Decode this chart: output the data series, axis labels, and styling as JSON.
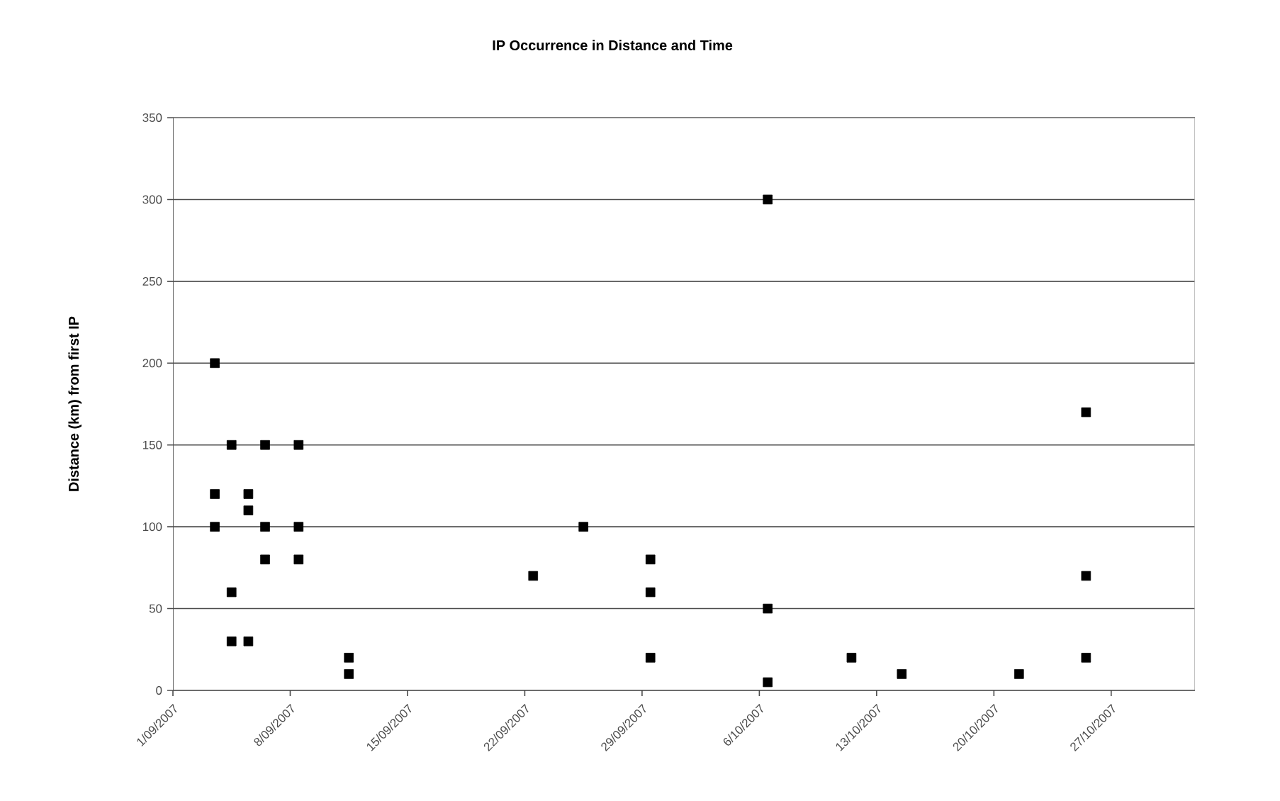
{
  "chart_data": {
    "type": "scatter",
    "title": "IP Occurrence in Distance and Time",
    "ylabel": "Distance (km) from first IP",
    "x": [
      "2007-09-03T12:00",
      "2007-09-03T12:00",
      "2007-09-03T12:00",
      "2007-09-04T12:00",
      "2007-09-04T12:00",
      "2007-09-04T12:00",
      "2007-09-05T12:00",
      "2007-09-05T12:00",
      "2007-09-05T12:00",
      "2007-09-06T12:00",
      "2007-09-06T12:00",
      "2007-09-06T12:00",
      "2007-09-08T12:00",
      "2007-09-08T12:00",
      "2007-09-08T12:00",
      "2007-09-11T12:00",
      "2007-09-11T12:00",
      "2007-09-22T12:00",
      "2007-09-25T12:00",
      "2007-09-29T12:00",
      "2007-09-29T12:00",
      "2007-09-29T12:00",
      "2007-10-06T12:00",
      "2007-10-06T12:00",
      "2007-10-06T12:00",
      "2007-10-11T12:00",
      "2007-10-14T12:00",
      "2007-10-21T12:00",
      "2007-10-25T12:00",
      "2007-10-25T12:00",
      "2007-10-25T12:00"
    ],
    "values": [
      200,
      120,
      100,
      150,
      60,
      30,
      120,
      110,
      30,
      150,
      100,
      80,
      150,
      100,
      80,
      20,
      10,
      70,
      100,
      80,
      60,
      20,
      300,
      50,
      5,
      20,
      10,
      10,
      170,
      70,
      20
    ],
    "color": "#000000",
    "marker": "square",
    "grid": "y",
    "xlim": [
      "2007-09-01",
      "2007-11-01"
    ],
    "ylim": [
      0,
      350
    ],
    "xticks": [
      {
        "value": "2007-09-01",
        "label": "1/09/2007"
      },
      {
        "value": "2007-09-08",
        "label": "8/09/2007"
      },
      {
        "value": "2007-09-15",
        "label": "15/09/2007"
      },
      {
        "value": "2007-09-22",
        "label": "22/09/2007"
      },
      {
        "value": "2007-09-29",
        "label": "29/09/2007"
      },
      {
        "value": "2007-10-06",
        "label": "6/10/2007"
      },
      {
        "value": "2007-10-13",
        "label": "13/10/2007"
      },
      {
        "value": "2007-10-20",
        "label": "20/10/2007"
      },
      {
        "value": "2007-10-27",
        "label": "27/10/2007"
      }
    ],
    "yticks": [
      0,
      50,
      100,
      150,
      200,
      250,
      300,
      350
    ]
  }
}
